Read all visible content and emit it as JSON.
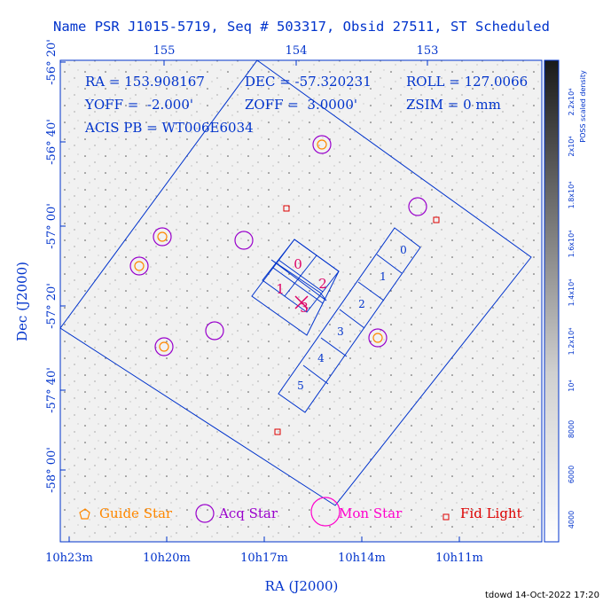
{
  "header": {
    "title": "Name PSR J1015-5719, Seq # 503317, Obsid 27511, ST Scheduled"
  },
  "axes": {
    "x_label": "RA (J2000)",
    "y_label": "Dec (J2000)",
    "top_ticks": [
      "155",
      "154",
      "153"
    ],
    "bottom_ticks": [
      "10h23m",
      "10h20m",
      "10h17m",
      "10h14m",
      "10h11m"
    ],
    "left_ticks": [
      "-56° 20'",
      "-56° 40'",
      "-57° 00'",
      "-57° 20'",
      "-57° 40'",
      "-58° 00'"
    ]
  },
  "info": {
    "ra": "RA = 153.908167",
    "dec": "DEC = -57.320231",
    "roll": "ROLL = 127.0066",
    "yoff": "YOFF =  -2.000'",
    "zoff": "ZOFF =  3.0000'",
    "zsim": "ZSIM = 0 mm",
    "acis": "ACIS PB = WT006E6034"
  },
  "colorbar": {
    "label": "POSS scaled density",
    "ticks": [
      "2.2x10⁴",
      "2x10⁴",
      "1.8x10⁴",
      "1.6x10⁴",
      "1.4x10⁴",
      "1.2x10⁴",
      "10⁴",
      "8000",
      "6000",
      "4000"
    ]
  },
  "ccd_labels": {
    "i0": "0",
    "i1": "1",
    "i2": "2",
    "i3": "3",
    "s0": "0",
    "s1": "1",
    "s2": "2",
    "s3": "3",
    "s4": "4",
    "s5": "5"
  },
  "legend": {
    "guide": "Guide Star",
    "acq": "Acq Star",
    "mon": "Mon Star",
    "fid": "Fid Light"
  },
  "colors": {
    "frame": "#0033cc",
    "guide": "#ff8800",
    "acq": "#9900cc",
    "mon": "#ff00cc",
    "fid": "#dd0000",
    "ccd_label_i": "#dd0066"
  },
  "footer": "tdowd 14-Oct-2022 17:20"
}
